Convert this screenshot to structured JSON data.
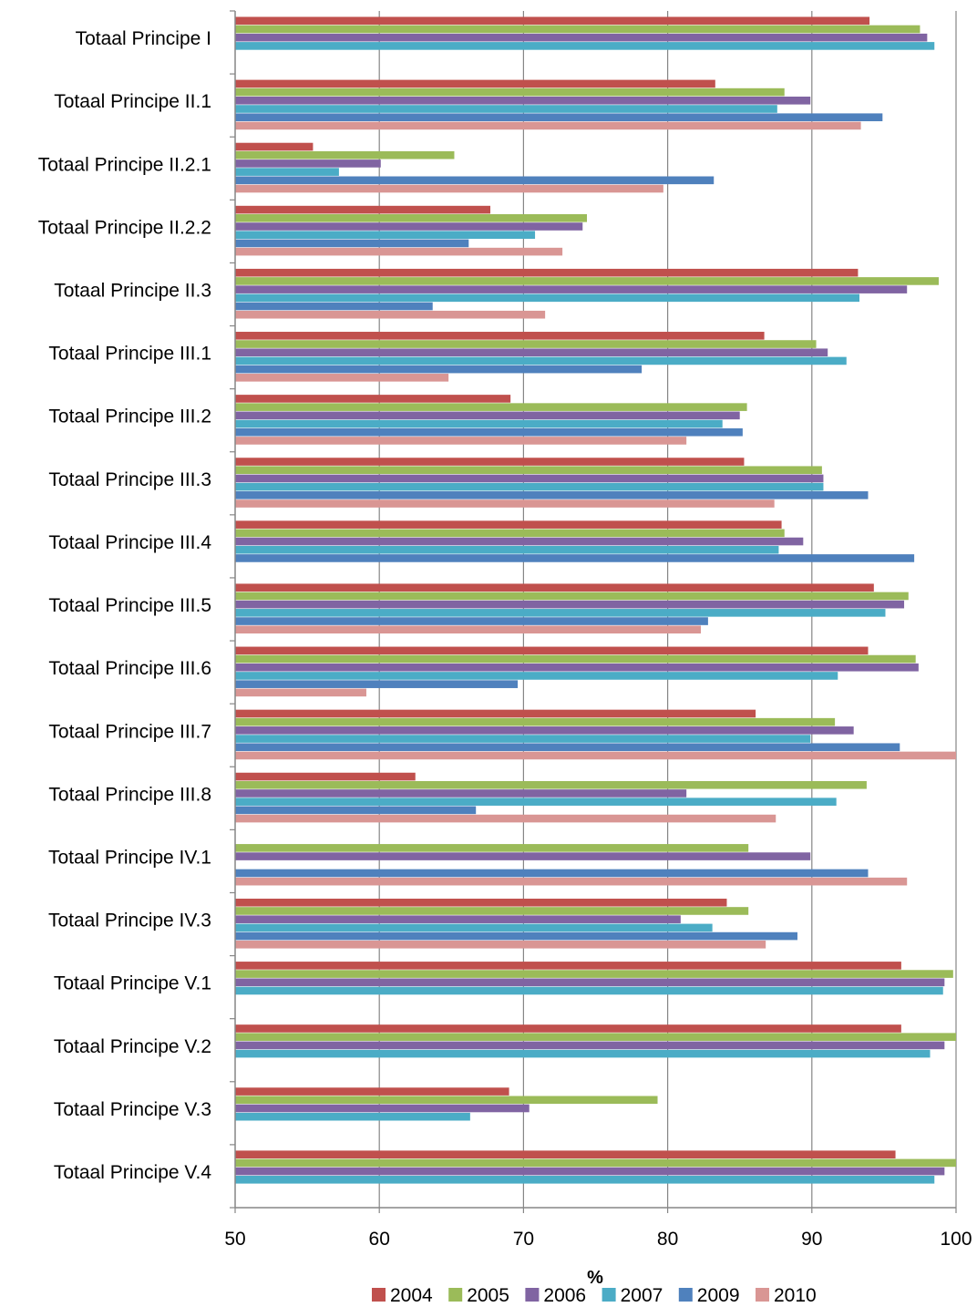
{
  "chart_data": {
    "type": "bar",
    "orientation": "horizontal",
    "xlabel": "%",
    "xlim": [
      50,
      100
    ],
    "xticks": [
      "50",
      "60",
      "70",
      "80",
      "90",
      "100"
    ],
    "grid": true,
    "legend_position": "bottom",
    "categories": [
      "Totaal Principe I",
      "Totaal Principe II.1",
      "Totaal Principe II.2.1",
      "Totaal Principe II.2.2",
      "Totaal Principe II.3",
      "Totaal Principe III.1",
      "Totaal Principe III.2",
      "Totaal Principe III.3",
      "Totaal Principe III.4",
      "Totaal Principe III.5",
      "Totaal Principe III.6",
      "Totaal Principe III.7",
      "Totaal Principe III.8",
      "Totaal Principe IV.1",
      "Totaal Principe IV.3",
      "Totaal Principe V.1",
      "Totaal Principe V.2",
      "Totaal Principe V.3",
      "Totaal Principe V.4"
    ],
    "series": [
      {
        "name": "2004",
        "color": "#C0504D",
        "values": [
          94.0,
          83.3,
          55.4,
          67.7,
          93.2,
          86.7,
          69.1,
          85.3,
          87.9,
          94.3,
          93.9,
          86.1,
          62.5,
          null,
          84.1,
          96.2,
          96.2,
          69.0,
          95.8
        ]
      },
      {
        "name": "2005",
        "color": "#9BBB59",
        "values": [
          97.5,
          88.1,
          65.2,
          74.4,
          98.8,
          90.3,
          85.5,
          90.7,
          88.1,
          96.7,
          97.2,
          91.6,
          93.8,
          85.6,
          85.6,
          99.8,
          100,
          79.3,
          100
        ]
      },
      {
        "name": "2006",
        "color": "#8064A2",
        "values": [
          98.0,
          89.9,
          60.1,
          74.1,
          96.6,
          91.1,
          85.0,
          90.8,
          89.4,
          96.4,
          97.4,
          92.9,
          81.3,
          89.9,
          80.9,
          99.2,
          99.2,
          70.4,
          99.2
        ]
      },
      {
        "name": "2007",
        "color": "#4BACC6",
        "values": [
          98.5,
          87.6,
          57.2,
          70.8,
          93.3,
          92.4,
          83.8,
          90.8,
          87.7,
          95.1,
          91.8,
          89.9,
          91.7,
          null,
          83.1,
          99.1,
          98.2,
          66.3,
          98.5
        ]
      },
      {
        "name": "2009",
        "color": "#4F81BD",
        "values": [
          null,
          94.9,
          83.2,
          66.2,
          63.7,
          78.2,
          85.2,
          93.9,
          97.1,
          82.8,
          69.6,
          96.1,
          66.7,
          93.9,
          89.0,
          null,
          null,
          null,
          null
        ]
      },
      {
        "name": "2010",
        "color": "#D99694",
        "values": [
          null,
          93.4,
          79.7,
          72.7,
          71.5,
          64.8,
          81.3,
          87.4,
          null,
          82.3,
          59.1,
          100,
          87.5,
          96.6,
          86.8,
          null,
          null,
          null,
          null
        ]
      }
    ]
  }
}
